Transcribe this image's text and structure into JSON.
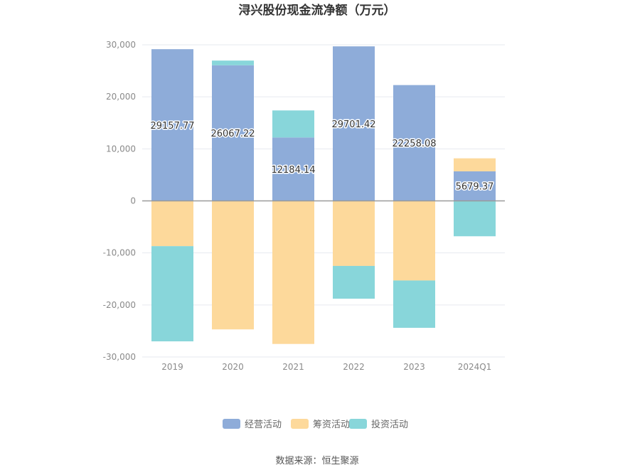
{
  "chart_data": {
    "type": "bar",
    "stacked": true,
    "title": "浔兴股份现金流净额（万元）",
    "categories": [
      "2019",
      "2020",
      "2021",
      "2022",
      "2023",
      "2024Q1"
    ],
    "series": [
      {
        "name": "经营活动",
        "color": "#8eacd9",
        "values": [
          29157.77,
          26067.22,
          12184.14,
          29701.42,
          22258.08,
          5679.37
        ]
      },
      {
        "name": "筹资活动",
        "color": "#fdd99b",
        "values": [
          -8700,
          -24700,
          -27500,
          -12500,
          -15300,
          2500
        ]
      },
      {
        "name": "投资活动",
        "color": "#88d6da",
        "values": [
          -18300,
          900,
          5200,
          -6300,
          -9100,
          -6800
        ]
      }
    ],
    "data_labels": [
      "29157.77",
      "26067.22",
      "12184.14",
      "29701.42",
      "22258.08",
      "5679.37"
    ],
    "y_ticks": [
      30000,
      20000,
      10000,
      0,
      -10000,
      -20000,
      -30000
    ],
    "y_tick_labels": [
      "30,000",
      "20,000",
      "10,000",
      "0",
      "-10,000",
      "-20,000",
      "-30,000"
    ],
    "ylim": [
      -30000,
      30000
    ],
    "grid": true,
    "legend_position": "bottom"
  },
  "source_text": "数据来源：恒生聚源"
}
